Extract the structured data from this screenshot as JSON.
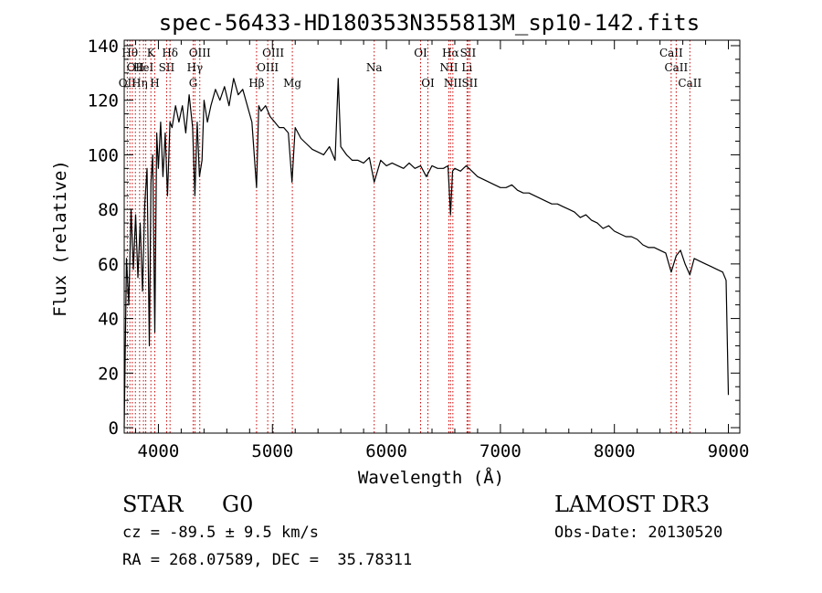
{
  "chart_data": {
    "type": "line",
    "title": "spec-56433-HD180353N355813M_sp10-142.fits",
    "xlabel": "Wavelength (Å)",
    "ylabel": "Flux (relative)",
    "xlim": [
      3700,
      9100
    ],
    "ylim": [
      -2,
      142
    ],
    "xticks": [
      4000,
      5000,
      6000,
      7000,
      8000,
      9000
    ],
    "yticks": [
      0,
      20,
      40,
      60,
      80,
      100,
      120,
      140
    ],
    "grid": false,
    "series": [
      {
        "x": [
          3700,
          3720,
          3740,
          3760,
          3780,
          3800,
          3820,
          3840,
          3860,
          3880,
          3900,
          3920,
          3935,
          3950,
          3968,
          3985,
          4000,
          4020,
          4040,
          4060,
          4080,
          4101,
          4120,
          4150,
          4180,
          4210,
          4240,
          4270,
          4300,
          4320,
          4340,
          4360,
          4383,
          4400,
          4430,
          4460,
          4500,
          4540,
          4580,
          4620,
          4660,
          4700,
          4740,
          4780,
          4820,
          4861,
          4880,
          4900,
          4940,
          4980,
          5020,
          5060,
          5100,
          5140,
          5172,
          5200,
          5250,
          5300,
          5350,
          5400,
          5450,
          5500,
          5550,
          5577,
          5600,
          5650,
          5700,
          5750,
          5800,
          5850,
          5893,
          5950,
          6000,
          6050,
          6100,
          6150,
          6200,
          6250,
          6300,
          6350,
          6400,
          6450,
          6500,
          6540,
          6563,
          6580,
          6600,
          6650,
          6700,
          6750,
          6800,
          6850,
          6900,
          6950,
          7000,
          7050,
          7100,
          7150,
          7200,
          7250,
          7300,
          7350,
          7400,
          7450,
          7500,
          7550,
          7600,
          7650,
          7700,
          7750,
          7800,
          7850,
          7900,
          7950,
          8000,
          8050,
          8100,
          8150,
          8200,
          8250,
          8300,
          8350,
          8400,
          8450,
          8498,
          8542,
          8580,
          8620,
          8662,
          8700,
          8750,
          8800,
          8850,
          8900,
          8950,
          8980,
          9000
        ],
        "y": [
          0,
          62,
          45,
          80,
          58,
          78,
          55,
          75,
          50,
          82,
          95,
          30,
          90,
          100,
          35,
          108,
          95,
          112,
          92,
          108,
          85,
          112,
          110,
          118,
          112,
          118,
          108,
          122,
          110,
          85,
          112,
          92,
          98,
          120,
          112,
          118,
          124,
          120,
          125,
          118,
          128,
          122,
          124,
          118,
          112,
          88,
          118,
          116,
          118,
          114,
          112,
          110,
          110,
          108,
          90,
          110,
          106,
          104,
          102,
          101,
          100,
          103,
          98,
          128,
          103,
          100,
          98,
          98,
          97,
          99,
          90,
          98,
          96,
          97,
          96,
          95,
          97,
          95,
          96,
          92,
          96,
          95,
          95,
          96,
          78,
          94,
          95,
          94,
          96,
          94,
          92,
          91,
          90,
          89,
          88,
          88,
          89,
          87,
          86,
          86,
          85,
          84,
          83,
          82,
          82,
          81,
          80,
          79,
          77,
          78,
          76,
          75,
          73,
          74,
          72,
          71,
          70,
          70,
          69,
          67,
          66,
          66,
          65,
          64,
          57,
          63,
          65,
          60,
          56,
          62,
          61,
          60,
          59,
          58,
          57,
          54,
          12
        ]
      }
    ],
    "lines": [
      {
        "wl": 3727,
        "label": "OII",
        "row": 3
      },
      {
        "wl": 3750,
        "label": "Hθ",
        "row": 1
      },
      {
        "wl": 3771,
        "label": "",
        "row": 0
      },
      {
        "wl": 3798,
        "label": "OII",
        "row": 2
      },
      {
        "wl": 3835,
        "label": "Hη",
        "row": 3
      },
      {
        "wl": 3869,
        "label": "HeI",
        "row": 2
      },
      {
        "wl": 3889,
        "label": "",
        "row": 0
      },
      {
        "wl": 3934,
        "label": "K",
        "row": 1
      },
      {
        "wl": 3968,
        "label": "H",
        "row": 3
      },
      {
        "wl": 4072,
        "label": "SII",
        "row": 2
      },
      {
        "wl": 4102,
        "label": "Hδ",
        "row": 1
      },
      {
        "wl": 4305,
        "label": "G",
        "row": 3
      },
      {
        "wl": 4320,
        "label": "Hγ",
        "row": 2
      },
      {
        "wl": 4363,
        "label": "OIII",
        "row": 1
      },
      {
        "wl": 4861,
        "label": "Hβ",
        "row": 3
      },
      {
        "wl": 4959,
        "label": "OIII",
        "row": 2
      },
      {
        "wl": 5007,
        "label": "OIII",
        "row": 1
      },
      {
        "wl": 5175,
        "label": "Mg",
        "row": 3
      },
      {
        "wl": 5893,
        "label": "Na",
        "row": 2
      },
      {
        "wl": 6300,
        "label": "OI",
        "row": 1
      },
      {
        "wl": 6364,
        "label": "OI",
        "row": 3
      },
      {
        "wl": 6548,
        "label": "NII",
        "row": 2
      },
      {
        "wl": 6563,
        "label": "Hα",
        "row": 1
      },
      {
        "wl": 6583,
        "label": "NII",
        "row": 3
      },
      {
        "wl": 6707,
        "label": "Li",
        "row": 2
      },
      {
        "wl": 6716,
        "label": "SII",
        "row": 1
      },
      {
        "wl": 6731,
        "label": "SII",
        "row": 3
      },
      {
        "wl": 8498,
        "label": "CaII",
        "row": 1
      },
      {
        "wl": 8542,
        "label": "CaII",
        "row": 2
      },
      {
        "wl": 8662,
        "label": "CaII",
        "row": 3
      }
    ]
  },
  "footer": {
    "star_type": "STAR",
    "subclass": "G0",
    "survey": "LAMOST DR3",
    "cz": "cz = -89.5 ± 9.5 km/s",
    "obs_date": "Obs-Date: 20130520",
    "coords": "RA = 268.07589, DEC =  35.78311"
  }
}
